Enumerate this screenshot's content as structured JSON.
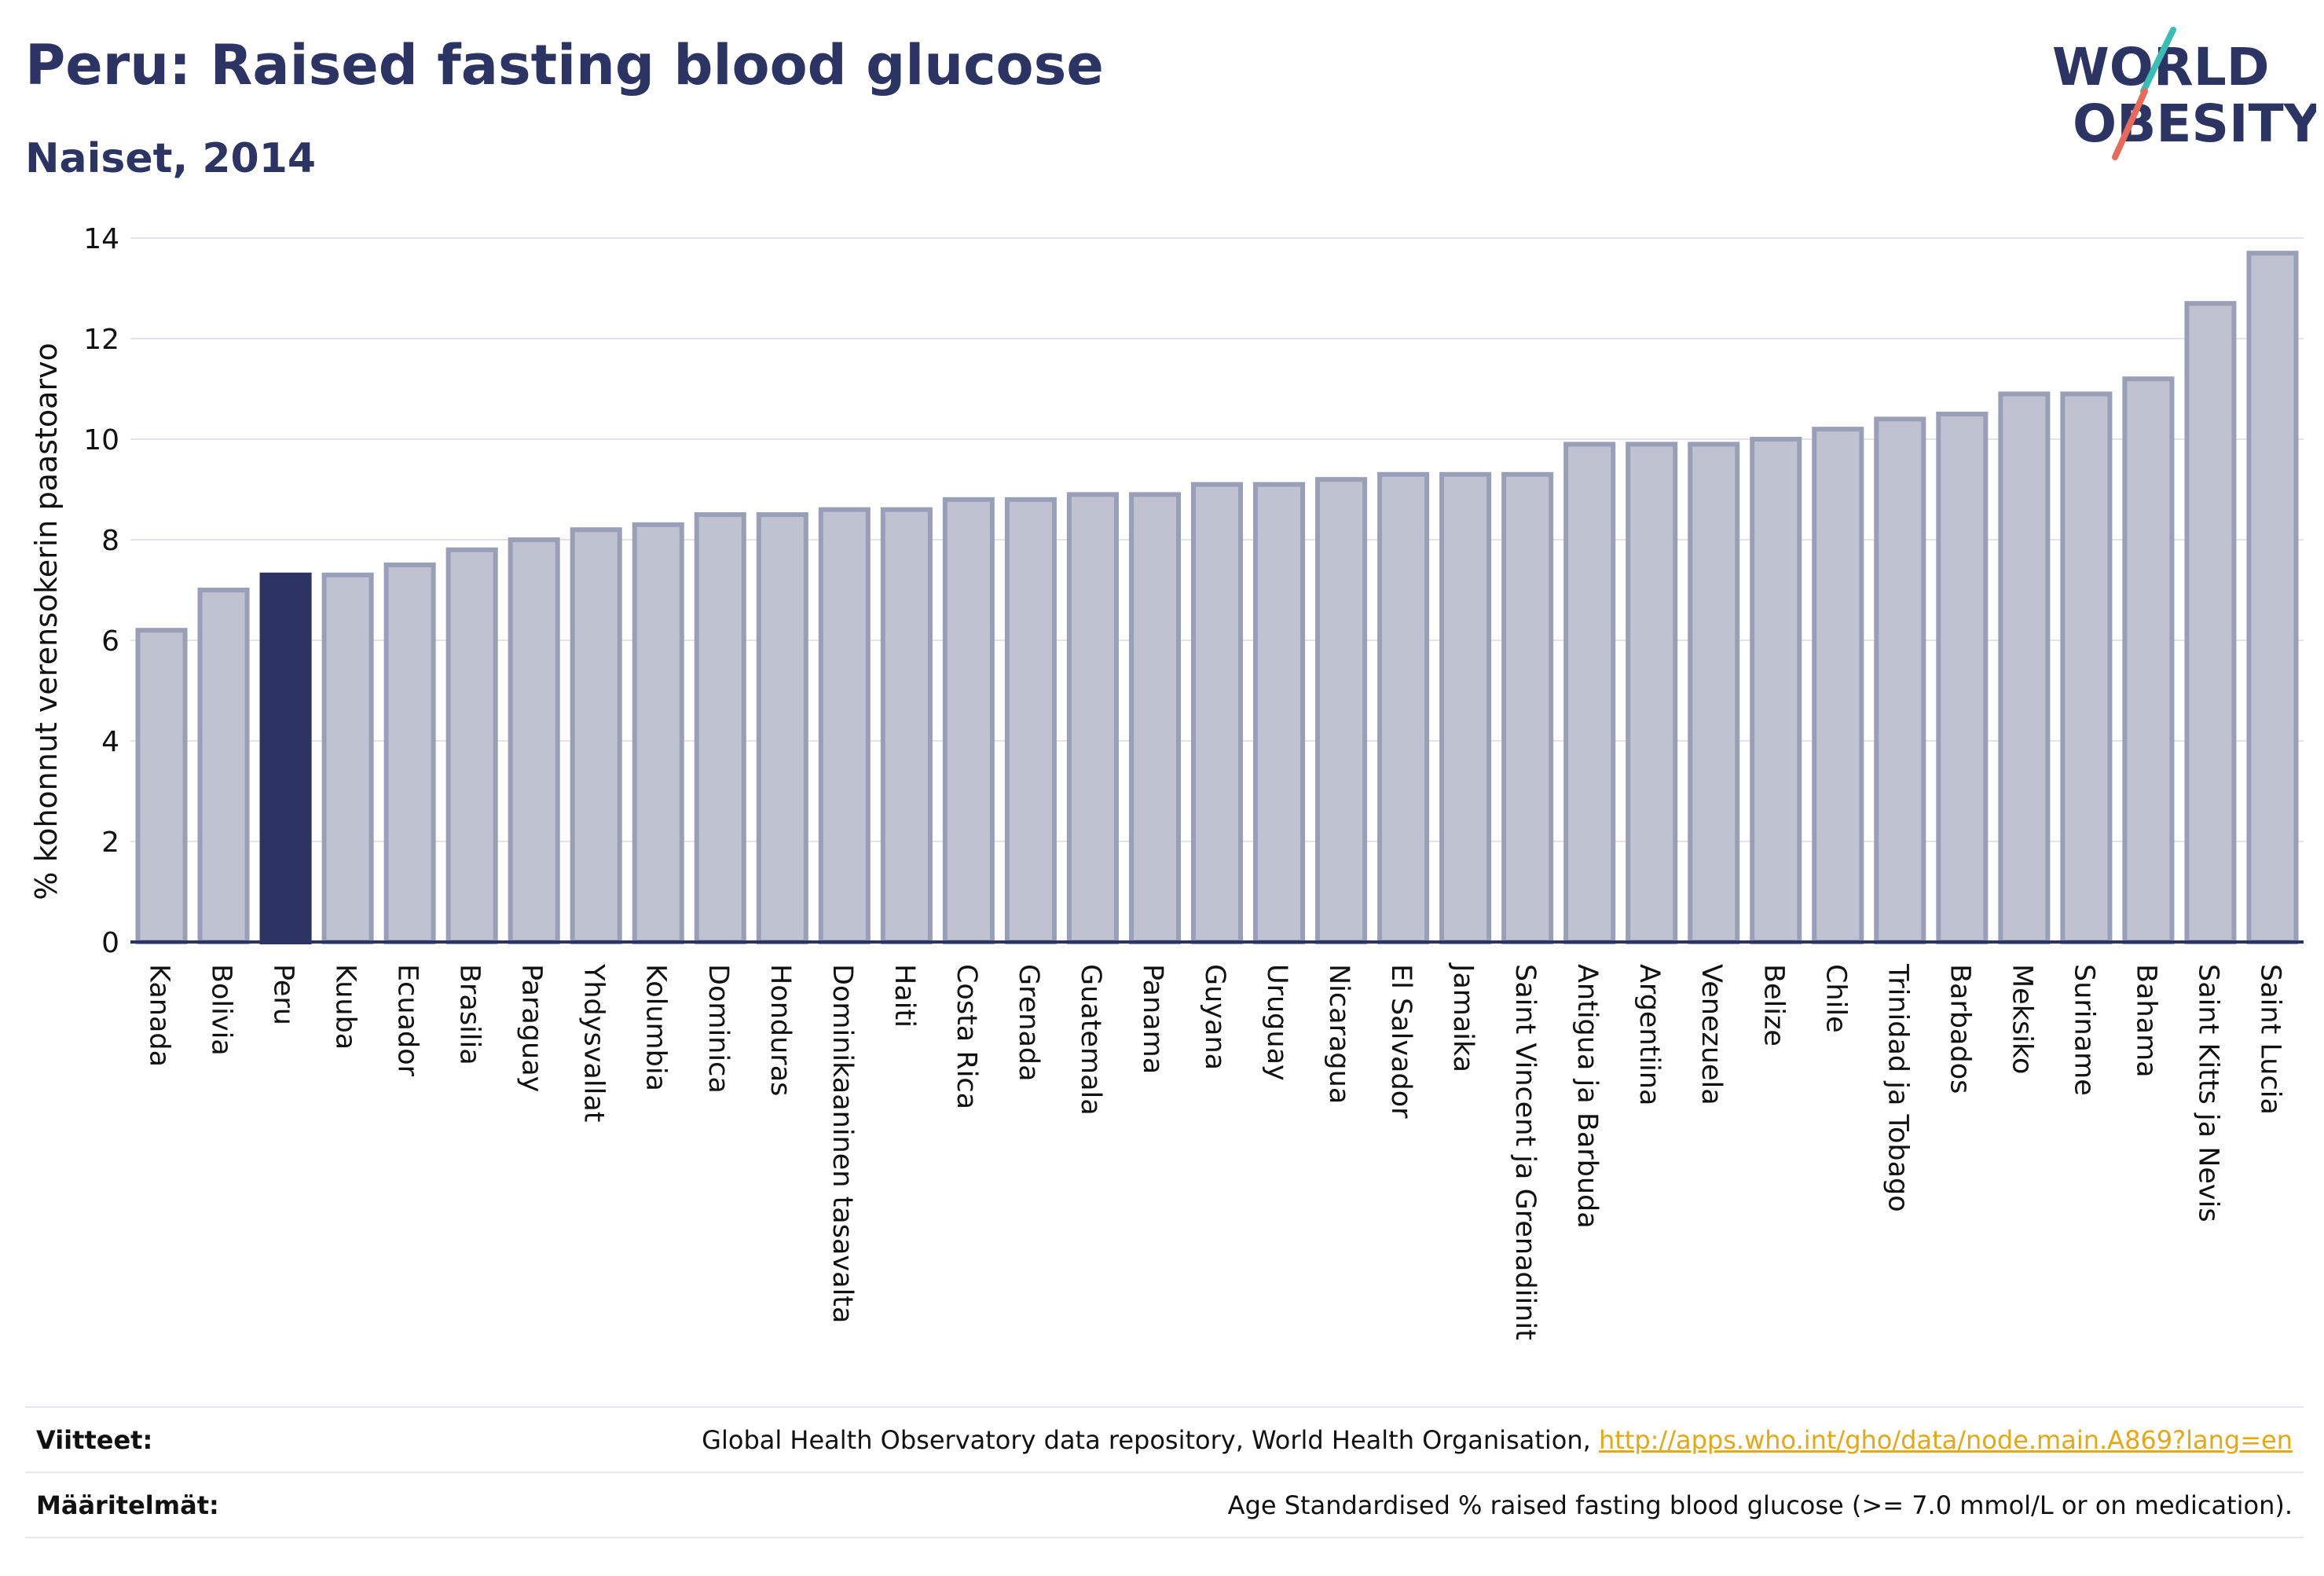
{
  "header": {
    "title": "Peru: Raised fasting blood glucose",
    "subtitle": "Naiset, 2014"
  },
  "logo": {
    "line1": "WORLD",
    "line2": "OBESITY",
    "colors": {
      "text": "#2b3462",
      "slash_teal": "#3bbdb4",
      "slash_coral": "#e86a5a"
    }
  },
  "colors": {
    "bar_fill": "#bfc2d0",
    "bar_stroke": "#9a9fb8",
    "highlight_fill": "#2b3462",
    "axis": "#2b3462",
    "grid": "#e3e3e8"
  },
  "chart_data": {
    "type": "bar",
    "ylabel": "% kohonnut verensokerin paastoarvo",
    "ylim": [
      0,
      14
    ],
    "yticks": [
      0,
      2,
      4,
      6,
      8,
      10,
      12,
      14
    ],
    "grid": true,
    "highlight": "Peru",
    "categories": [
      "Kanada",
      "Bolivia",
      "Peru",
      "Kuuba",
      "Ecuador",
      "Brasilia",
      "Paraguay",
      "Yhdysvallat",
      "Kolumbia",
      "Dominica",
      "Honduras",
      "Dominikaaninen tasavalta",
      "Haiti",
      "Costa Rica",
      "Grenada",
      "Guatemala",
      "Panama",
      "Guyana",
      "Uruguay",
      "Nicaragua",
      "El Salvador",
      "Jamaika",
      "Saint Vincent ja Grenadiinit",
      "Antigua ja Barbuda",
      "Argentiina",
      "Venezuela",
      "Belize",
      "Chile",
      "Trinidad ja Tobago",
      "Barbados",
      "Meksiko",
      "Suriname",
      "Bahama",
      "Saint Kitts ja Nevis",
      "Saint Lucia"
    ],
    "values": [
      6.2,
      7.0,
      7.3,
      7.3,
      7.5,
      7.8,
      8.0,
      8.2,
      8.3,
      8.5,
      8.5,
      8.6,
      8.6,
      8.8,
      8.8,
      8.9,
      8.9,
      9.1,
      9.1,
      9.2,
      9.3,
      9.3,
      9.3,
      9.9,
      9.9,
      9.9,
      10.0,
      10.2,
      10.4,
      10.5,
      10.9,
      10.9,
      11.2,
      12.7,
      13.7
    ]
  },
  "footer": {
    "sources_label": "Viitteet:",
    "sources_text": "Global Health Observatory data repository, World Health Organisation, ",
    "sources_link": "http://apps.who.int/gho/data/node.main.A869?lang=en",
    "definitions_label": "Määritelmät:",
    "definitions_text": "Age Standardised % raised fasting blood glucose (>= 7.0 mmol/L or on medication)."
  }
}
